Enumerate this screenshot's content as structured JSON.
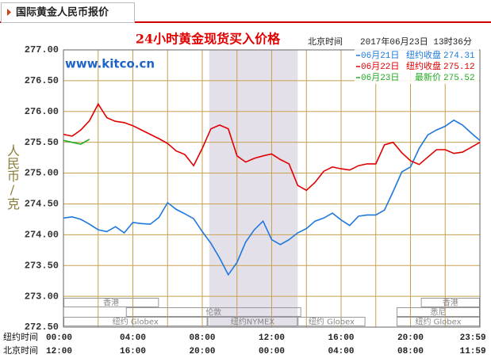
{
  "header": {
    "title": "国际黄金人民币报价"
  },
  "chart_data": {
    "type": "line",
    "title": "24小时黄金现货买入价格",
    "time_zone_label": "北京时间",
    "timestamp": "2017年06月23日 13时36分",
    "watermark": "www.kitco.cn",
    "y_label": "人民币/克",
    "xaxis_labels": [
      "纽约时间",
      "北京时间"
    ],
    "x": [
      0,
      0.5,
      1,
      1.5,
      2,
      2.5,
      3,
      3.5,
      4,
      4.5,
      5,
      5.5,
      6,
      6.5,
      7,
      7.5,
      8,
      8.5,
      9,
      9.5,
      10,
      10.5,
      11,
      11.5,
      12,
      12.5,
      13,
      13.5,
      14,
      14.5,
      15,
      15.5,
      16,
      16.5,
      17,
      17.5,
      18,
      18.5,
      19,
      19.5,
      20,
      20.5,
      21,
      21.5,
      22,
      22.5,
      23,
      23.5,
      24
    ],
    "xlim": [
      0,
      24
    ],
    "xticks": [
      {
        "value": 0,
        "label": "00:00"
      },
      {
        "value": 4,
        "label": "04:00"
      },
      {
        "value": 8,
        "label": "08:00"
      },
      {
        "value": 12,
        "label": "12:00"
      },
      {
        "value": 16,
        "label": "16:00"
      },
      {
        "value": 20,
        "label": "20:00"
      },
      {
        "value": 23.983,
        "label": "23:59"
      }
    ],
    "x2ticks": [
      {
        "value": 0,
        "label": "12:00"
      },
      {
        "value": 4,
        "label": "16:00"
      },
      {
        "value": 8,
        "label": "20:00"
      },
      {
        "value": 12,
        "label": "00:00"
      },
      {
        "value": 16,
        "label": "04:00"
      },
      {
        "value": 20,
        "label": "08:00"
      },
      {
        "value": 23.983,
        "label": "11:59"
      }
    ],
    "xgrid": [
      0,
      2,
      4,
      6,
      8,
      10,
      12,
      14,
      16,
      18,
      20,
      22,
      24
    ],
    "ylim": [
      272.5,
      277
    ],
    "yticks": [
      {
        "value": 272.5,
        "label": "272.50"
      },
      {
        "value": 273,
        "label": "273.00"
      },
      {
        "value": 273.5,
        "label": "273.50"
      },
      {
        "value": 274,
        "label": "274.00"
      },
      {
        "value": 274.5,
        "label": "274.50"
      },
      {
        "value": 275,
        "label": "275.00"
      },
      {
        "value": 275.5,
        "label": "275.50"
      },
      {
        "value": 276,
        "label": "276.00"
      },
      {
        "value": 276.5,
        "label": "276.50"
      },
      {
        "value": 277,
        "label": "277.00"
      }
    ],
    "grid": true,
    "shaded_region": [
      8.4,
      13.5
    ],
    "sessions": [
      {
        "name": "香港",
        "row": 0,
        "start": 0,
        "end": 5.5
      },
      {
        "name": "香港",
        "row": 0,
        "start": 20.6,
        "end": 24
      },
      {
        "name": "伦敦",
        "row": 1,
        "start": 3.6,
        "end": 13.7
      },
      {
        "name": "悉尼",
        "row": 1,
        "start": 19.2,
        "end": 24
      },
      {
        "name": "纽约 Globex",
        "row": 2,
        "start": 0,
        "end": 8.3
      },
      {
        "name": "纽约NYMEX",
        "row": 2,
        "start": 8.3,
        "end": 13.5
      },
      {
        "name": "纽约 Globex",
        "row": 2,
        "start": 13.5,
        "end": 17.4
      },
      {
        "name": "纽约 Globex",
        "row": 2,
        "start": 19.2,
        "end": 24
      }
    ],
    "series": [
      {
        "name": "06月21日",
        "legend_label": "纽约收盘",
        "last_value": 274.31,
        "color": "#1e78dc",
        "values": [
          274.27,
          274.29,
          274.25,
          274.17,
          274.08,
          274.05,
          274.13,
          274.03,
          274.2,
          274.18,
          274.17,
          274.28,
          274.52,
          274.41,
          274.34,
          274.26,
          274.05,
          273.86,
          273.62,
          273.35,
          273.55,
          273.88,
          274.08,
          274.22,
          273.92,
          273.84,
          273.92,
          274.03,
          274.1,
          274.22,
          274.27,
          274.35,
          274.24,
          274.15,
          274.3,
          274.32,
          274.32,
          274.4,
          274.7,
          275.02,
          275.1,
          275.4,
          275.62,
          275.7,
          275.76,
          275.86,
          275.78,
          275.65,
          275.53
        ]
      },
      {
        "name": "06月22日",
        "legend_label": "纽约收盘",
        "last_value": 275.12,
        "color": "#e00000",
        "values": [
          275.63,
          275.6,
          275.7,
          275.85,
          276.12,
          275.9,
          275.84,
          275.82,
          275.77,
          275.7,
          275.63,
          275.56,
          275.48,
          275.36,
          275.3,
          275.12,
          275.4,
          275.72,
          275.78,
          275.72,
          275.28,
          275.18,
          275.24,
          275.28,
          275.31,
          275.22,
          275.15,
          274.8,
          274.72,
          274.85,
          275.03,
          275.1,
          275.07,
          275.05,
          275.12,
          275.15,
          275.15,
          275.46,
          275.5,
          275.33,
          275.2,
          275.14,
          275.26,
          275.38,
          275.38,
          275.32,
          275.34,
          275.42,
          275.5
        ]
      },
      {
        "name": "06月23日",
        "legend_label": "最新价",
        "last_value": 275.52,
        "color": "#22aa22",
        "values": [
          275.53,
          275.5,
          275.47,
          275.55,
          null,
          null,
          null,
          null,
          null,
          null,
          null,
          null,
          null,
          null,
          null,
          null,
          null,
          null,
          null,
          null,
          null,
          null,
          null,
          null,
          null,
          null,
          null,
          null,
          null,
          null,
          null,
          null,
          null,
          null,
          null,
          null,
          null,
          null,
          null,
          null,
          null,
          null,
          null,
          null,
          null,
          null,
          null,
          null,
          null
        ]
      }
    ]
  }
}
